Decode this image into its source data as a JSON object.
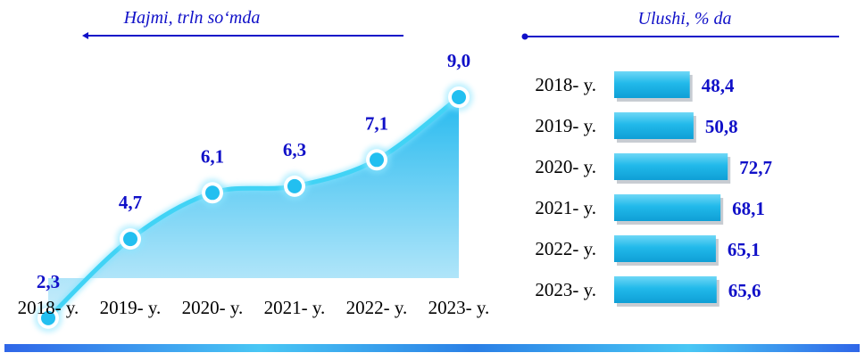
{
  "colors": {
    "accent": "#1010c8",
    "area_fill": "#38c4f0",
    "line": "#41d3f5",
    "bar": "#1fb7e8",
    "bottom_band": "#1f6fe0"
  },
  "chart_data": [
    {
      "type": "area",
      "title": "Hajmi, trln so‘mda",
      "categories": [
        "2018- y.",
        "2019- y.",
        "2020- y.",
        "2021- y.",
        "2022- y.",
        "2023- y."
      ],
      "values": [
        2.3,
        4.7,
        6.1,
        6.3,
        7.1,
        9.0
      ],
      "value_labels": [
        "2,3",
        "4,7",
        "6,1",
        "6,3",
        "7,1",
        "9,0"
      ],
      "ylim": [
        0,
        10
      ],
      "grid": false,
      "xlabel": "",
      "ylabel": ""
    },
    {
      "type": "bar",
      "orientation": "horizontal",
      "title": "Ulushi, % da",
      "categories": [
        "2018- y.",
        "2019- y.",
        "2020- y.",
        "2021- y.",
        "2022- y.",
        "2023- y."
      ],
      "values": [
        48.4,
        50.8,
        72.7,
        68.1,
        65.1,
        65.6
      ],
      "value_labels": [
        "48,4",
        "50,8",
        "72,7",
        "68,1",
        "65,1",
        "65,6"
      ],
      "grid": false,
      "xlabel": "",
      "ylabel": ""
    }
  ]
}
